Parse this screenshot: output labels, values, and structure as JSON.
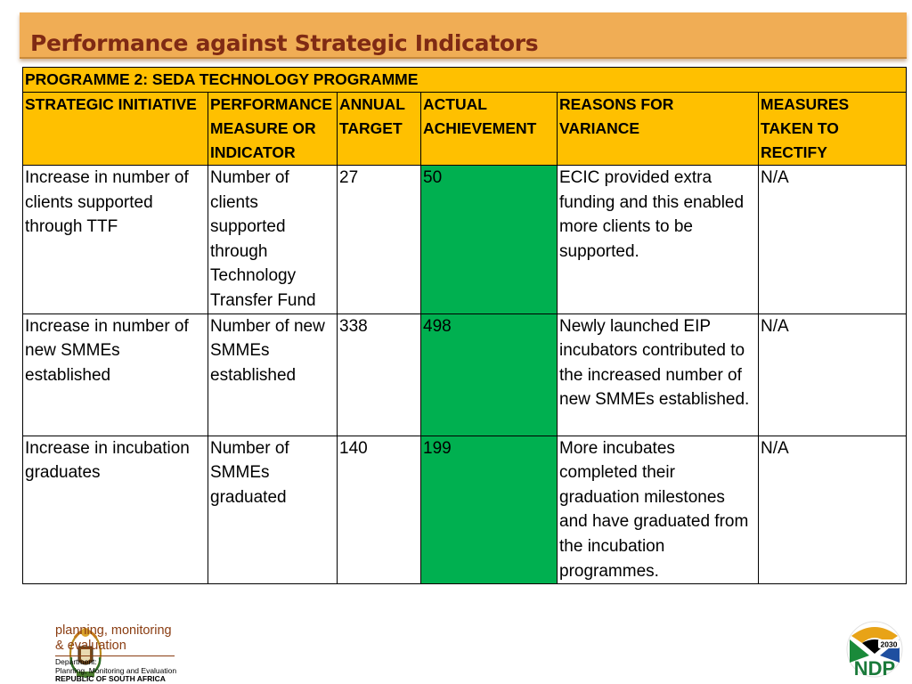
{
  "title": "Performance against Strategic Indicators",
  "table": {
    "programme": "PROGRAMME 2: SEDA TECHNOLOGY PROGRAMME",
    "headers": [
      "STRATEGIC INITIATIVE",
      "PERFORMANCE MEASURE OR INDICATOR",
      "ANNUAL TARGET",
      "ACTUAL ACHIEVEMENT",
      "REASONS FOR VARIANCE",
      "MEASURES TAKEN TO RECTIFY"
    ],
    "rows": [
      {
        "initiative": "Increase in number of clients supported through TTF",
        "measure": "Number of clients supported through Technology Transfer Fund",
        "target": "27",
        "actual": "50",
        "reason": "ECIC provided extra funding and this enabled more clients to be supported.",
        "rectify": "N/A"
      },
      {
        "initiative": "Increase in number of new SMMEs established",
        "measure": "Number of new SMMEs established",
        "target": "338",
        "actual": "498",
        "reason": "Newly launched EIP incubators contributed to the increased number of new SMMEs established.",
        "rectify": "N/A"
      },
      {
        "initiative": "Increase in incubation graduates",
        "measure": "Number of SMMEs graduated",
        "target": "140",
        "actual": "199",
        "reason": "More incubates completed their graduation milestones and have graduated from the incubation programmes.",
        "rectify": "N/A"
      }
    ]
  },
  "footer": {
    "org_line1": "planning, monitoring",
    "org_line2": "& evaluation",
    "dept_line1": "Department:",
    "dept_line2": "Planning, Monitoring and Evaluation",
    "dept_line3": "REPUBLIC OF SOUTH AFRICA",
    "ndp_year": "2030",
    "ndp_text": "NDP"
  },
  "colors": {
    "header_fill": "#ffc000",
    "achievement_fill": "#00b050",
    "title_bar": "#f0ad55",
    "title_text": "#7f2a14"
  }
}
